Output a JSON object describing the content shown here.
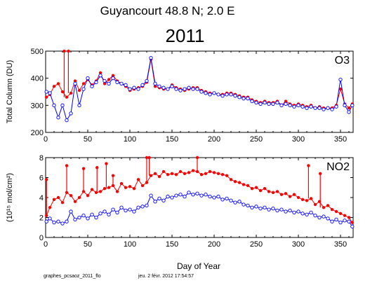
{
  "figure": {
    "station_title": "Guyancourt  48.8 N; 2.0 E",
    "year_title": "2011",
    "xlabel": "Day of Year",
    "footer_left": "graphes_pcsaoz_2011_flo",
    "footer_right": "jeu. 2 févr. 2012 17:54:57"
  },
  "colors": {
    "am": "#ff0000",
    "pm": "#0000ff",
    "axis": "#000000"
  },
  "chart_data": [
    {
      "type": "line",
      "panel_label": "O3",
      "ylabel": "Total Column  (DU)",
      "xlim": [
        0,
        365
      ],
      "ylim": [
        200,
        500
      ],
      "xticks": [
        0,
        50,
        100,
        150,
        200,
        250,
        300,
        350
      ],
      "yticks": [
        200,
        300,
        400,
        500
      ],
      "markers": true,
      "grid": false,
      "legend": "none",
      "series": [
        {
          "color": "#ff0000",
          "marker": "filled",
          "x": [
            1,
            5,
            10,
            15,
            20,
            25,
            30,
            35,
            40,
            45,
            50,
            55,
            60,
            65,
            70,
            75,
            80,
            85,
            90,
            95,
            100,
            105,
            110,
            115,
            120,
            125,
            130,
            135,
            140,
            145,
            150,
            155,
            160,
            165,
            170,
            175,
            180,
            185,
            190,
            195,
            200,
            205,
            210,
            215,
            220,
            225,
            230,
            235,
            240,
            245,
            250,
            255,
            260,
            265,
            270,
            275,
            280,
            285,
            290,
            295,
            300,
            305,
            310,
            315,
            320,
            325,
            330,
            335,
            340,
            345,
            350,
            355,
            360,
            364
          ],
          "y": [
            330,
            340,
            370,
            380,
            350,
            330,
            345,
            390,
            355,
            380,
            395,
            375,
            390,
            420,
            380,
            395,
            410,
            390,
            380,
            370,
            355,
            360,
            365,
            370,
            385,
            470,
            370,
            365,
            360,
            360,
            375,
            365,
            360,
            355,
            360,
            365,
            365,
            355,
            350,
            345,
            345,
            340,
            340,
            345,
            345,
            340,
            335,
            330,
            330,
            320,
            315,
            310,
            315,
            310,
            310,
            315,
            300,
            315,
            305,
            300,
            305,
            300,
            295,
            300,
            290,
            295,
            290,
            290,
            290,
            300,
            360,
            305,
            290,
            305
          ],
          "spikes": [
            [
              22,
              500
            ],
            [
              27,
              500
            ]
          ]
        },
        {
          "color": "#0000ff",
          "marker": "open",
          "x": [
            1,
            5,
            10,
            15,
            20,
            25,
            30,
            35,
            40,
            45,
            50,
            55,
            60,
            65,
            70,
            75,
            80,
            85,
            90,
            95,
            100,
            105,
            110,
            115,
            120,
            125,
            130,
            135,
            140,
            145,
            150,
            155,
            160,
            165,
            170,
            175,
            180,
            185,
            190,
            195,
            200,
            205,
            210,
            215,
            220,
            225,
            230,
            235,
            240,
            245,
            250,
            255,
            260,
            265,
            270,
            275,
            280,
            285,
            290,
            295,
            300,
            305,
            310,
            315,
            320,
            325,
            330,
            335,
            340,
            345,
            350,
            355,
            360,
            364
          ],
          "y": [
            350,
            345,
            300,
            255,
            300,
            245,
            270,
            380,
            300,
            360,
            400,
            370,
            385,
            410,
            390,
            380,
            400,
            385,
            380,
            375,
            360,
            365,
            360,
            375,
            390,
            475,
            380,
            370,
            365,
            360,
            370,
            360,
            355,
            360,
            365,
            360,
            360,
            350,
            345,
            340,
            345,
            340,
            335,
            340,
            340,
            335,
            330,
            325,
            325,
            315,
            310,
            305,
            310,
            305,
            305,
            310,
            300,
            305,
            300,
            295,
            300,
            295,
            290,
            295,
            290,
            290,
            285,
            290,
            285,
            295,
            395,
            300,
            275,
            300
          ]
        }
      ]
    },
    {
      "type": "line",
      "panel_label": "NO2",
      "ylabel": "(10¹⁵ mol/cm²)",
      "xlim": [
        0,
        365
      ],
      "ylim": [
        0,
        8
      ],
      "xticks": [
        0,
        50,
        100,
        150,
        200,
        250,
        300,
        350
      ],
      "yticks": [
        0,
        2,
        4,
        6,
        8
      ],
      "markers": true,
      "grid": false,
      "legend": "none",
      "series": [
        {
          "color": "#ff0000",
          "marker": "filled",
          "x": [
            1,
            5,
            10,
            15,
            20,
            25,
            30,
            35,
            40,
            45,
            50,
            55,
            60,
            65,
            70,
            75,
            80,
            85,
            90,
            95,
            100,
            105,
            110,
            115,
            120,
            125,
            130,
            135,
            140,
            145,
            150,
            155,
            160,
            165,
            170,
            175,
            180,
            185,
            190,
            195,
            200,
            205,
            210,
            215,
            220,
            225,
            230,
            235,
            240,
            245,
            250,
            255,
            260,
            265,
            270,
            275,
            280,
            285,
            290,
            295,
            300,
            305,
            310,
            315,
            320,
            325,
            330,
            335,
            340,
            345,
            350,
            355,
            360,
            364
          ],
          "y": [
            2.2,
            3.0,
            3.8,
            4.0,
            3.5,
            4.5,
            4.2,
            3.6,
            4.0,
            4.6,
            4.2,
            4.8,
            4.5,
            4.6,
            4.9,
            5.0,
            5.2,
            4.6,
            5.4,
            5.0,
            5.1,
            4.9,
            5.8,
            5.2,
            5.5,
            6.2,
            6.4,
            6.1,
            6.6,
            6.3,
            6.4,
            6.3,
            6.6,
            6.4,
            6.5,
            6.7,
            6.6,
            6.3,
            6.4,
            6.6,
            6.5,
            6.4,
            6.3,
            6.2,
            5.8,
            5.6,
            5.5,
            5.3,
            5.2,
            4.9,
            5.0,
            4.7,
            4.9,
            4.6,
            4.5,
            4.6,
            4.3,
            4.4,
            4.1,
            4.3,
            4.0,
            3.8,
            3.7,
            3.9,
            3.3,
            3.6,
            3.0,
            3.2,
            2.8,
            2.6,
            2.4,
            2.2,
            2.0,
            1.5
          ],
          "spikes": [
            [
              1,
              5.8
            ],
            [
              25,
              7.2
            ],
            [
              45,
              6.9
            ],
            [
              61,
              7.0
            ],
            [
              72,
              7.4
            ],
            [
              80,
              6.2
            ],
            [
              120,
              8.0
            ],
            [
              123,
              8.0
            ],
            [
              180,
              8.0
            ],
            [
              312,
              7.2
            ],
            [
              326,
              6.4
            ]
          ]
        },
        {
          "color": "#0000ff",
          "marker": "open",
          "x": [
            1,
            5,
            10,
            15,
            20,
            25,
            30,
            35,
            40,
            45,
            50,
            55,
            60,
            65,
            70,
            75,
            80,
            85,
            90,
            95,
            100,
            105,
            110,
            115,
            120,
            125,
            130,
            135,
            140,
            145,
            150,
            155,
            160,
            165,
            170,
            175,
            180,
            185,
            190,
            195,
            200,
            205,
            210,
            215,
            220,
            225,
            230,
            235,
            240,
            245,
            250,
            255,
            260,
            265,
            270,
            275,
            280,
            285,
            290,
            295,
            300,
            305,
            310,
            315,
            320,
            325,
            330,
            335,
            340,
            345,
            350,
            355,
            360,
            364
          ],
          "y": [
            1.6,
            1.9,
            1.5,
            1.6,
            1.4,
            1.6,
            2.6,
            1.8,
            2.0,
            2.2,
            1.9,
            2.3,
            2.0,
            2.4,
            2.6,
            2.3,
            2.8,
            2.5,
            3.0,
            2.7,
            2.8,
            2.6,
            3.0,
            3.1,
            3.2,
            4.2,
            3.6,
            3.9,
            3.7,
            4.1,
            4.0,
            4.2,
            4.3,
            4.1,
            4.5,
            4.3,
            4.4,
            4.2,
            4.3,
            4.1,
            4.0,
            4.1,
            3.8,
            3.9,
            3.7,
            3.5,
            3.6,
            3.3,
            3.2,
            3.0,
            3.1,
            2.9,
            3.0,
            2.8,
            2.9,
            2.7,
            2.8,
            2.6,
            2.7,
            2.5,
            2.6,
            2.4,
            2.3,
            2.5,
            2.2,
            2.0,
            2.1,
            1.9,
            1.6,
            1.8,
            1.5,
            1.7,
            1.6,
            1.1
          ]
        }
      ]
    }
  ]
}
